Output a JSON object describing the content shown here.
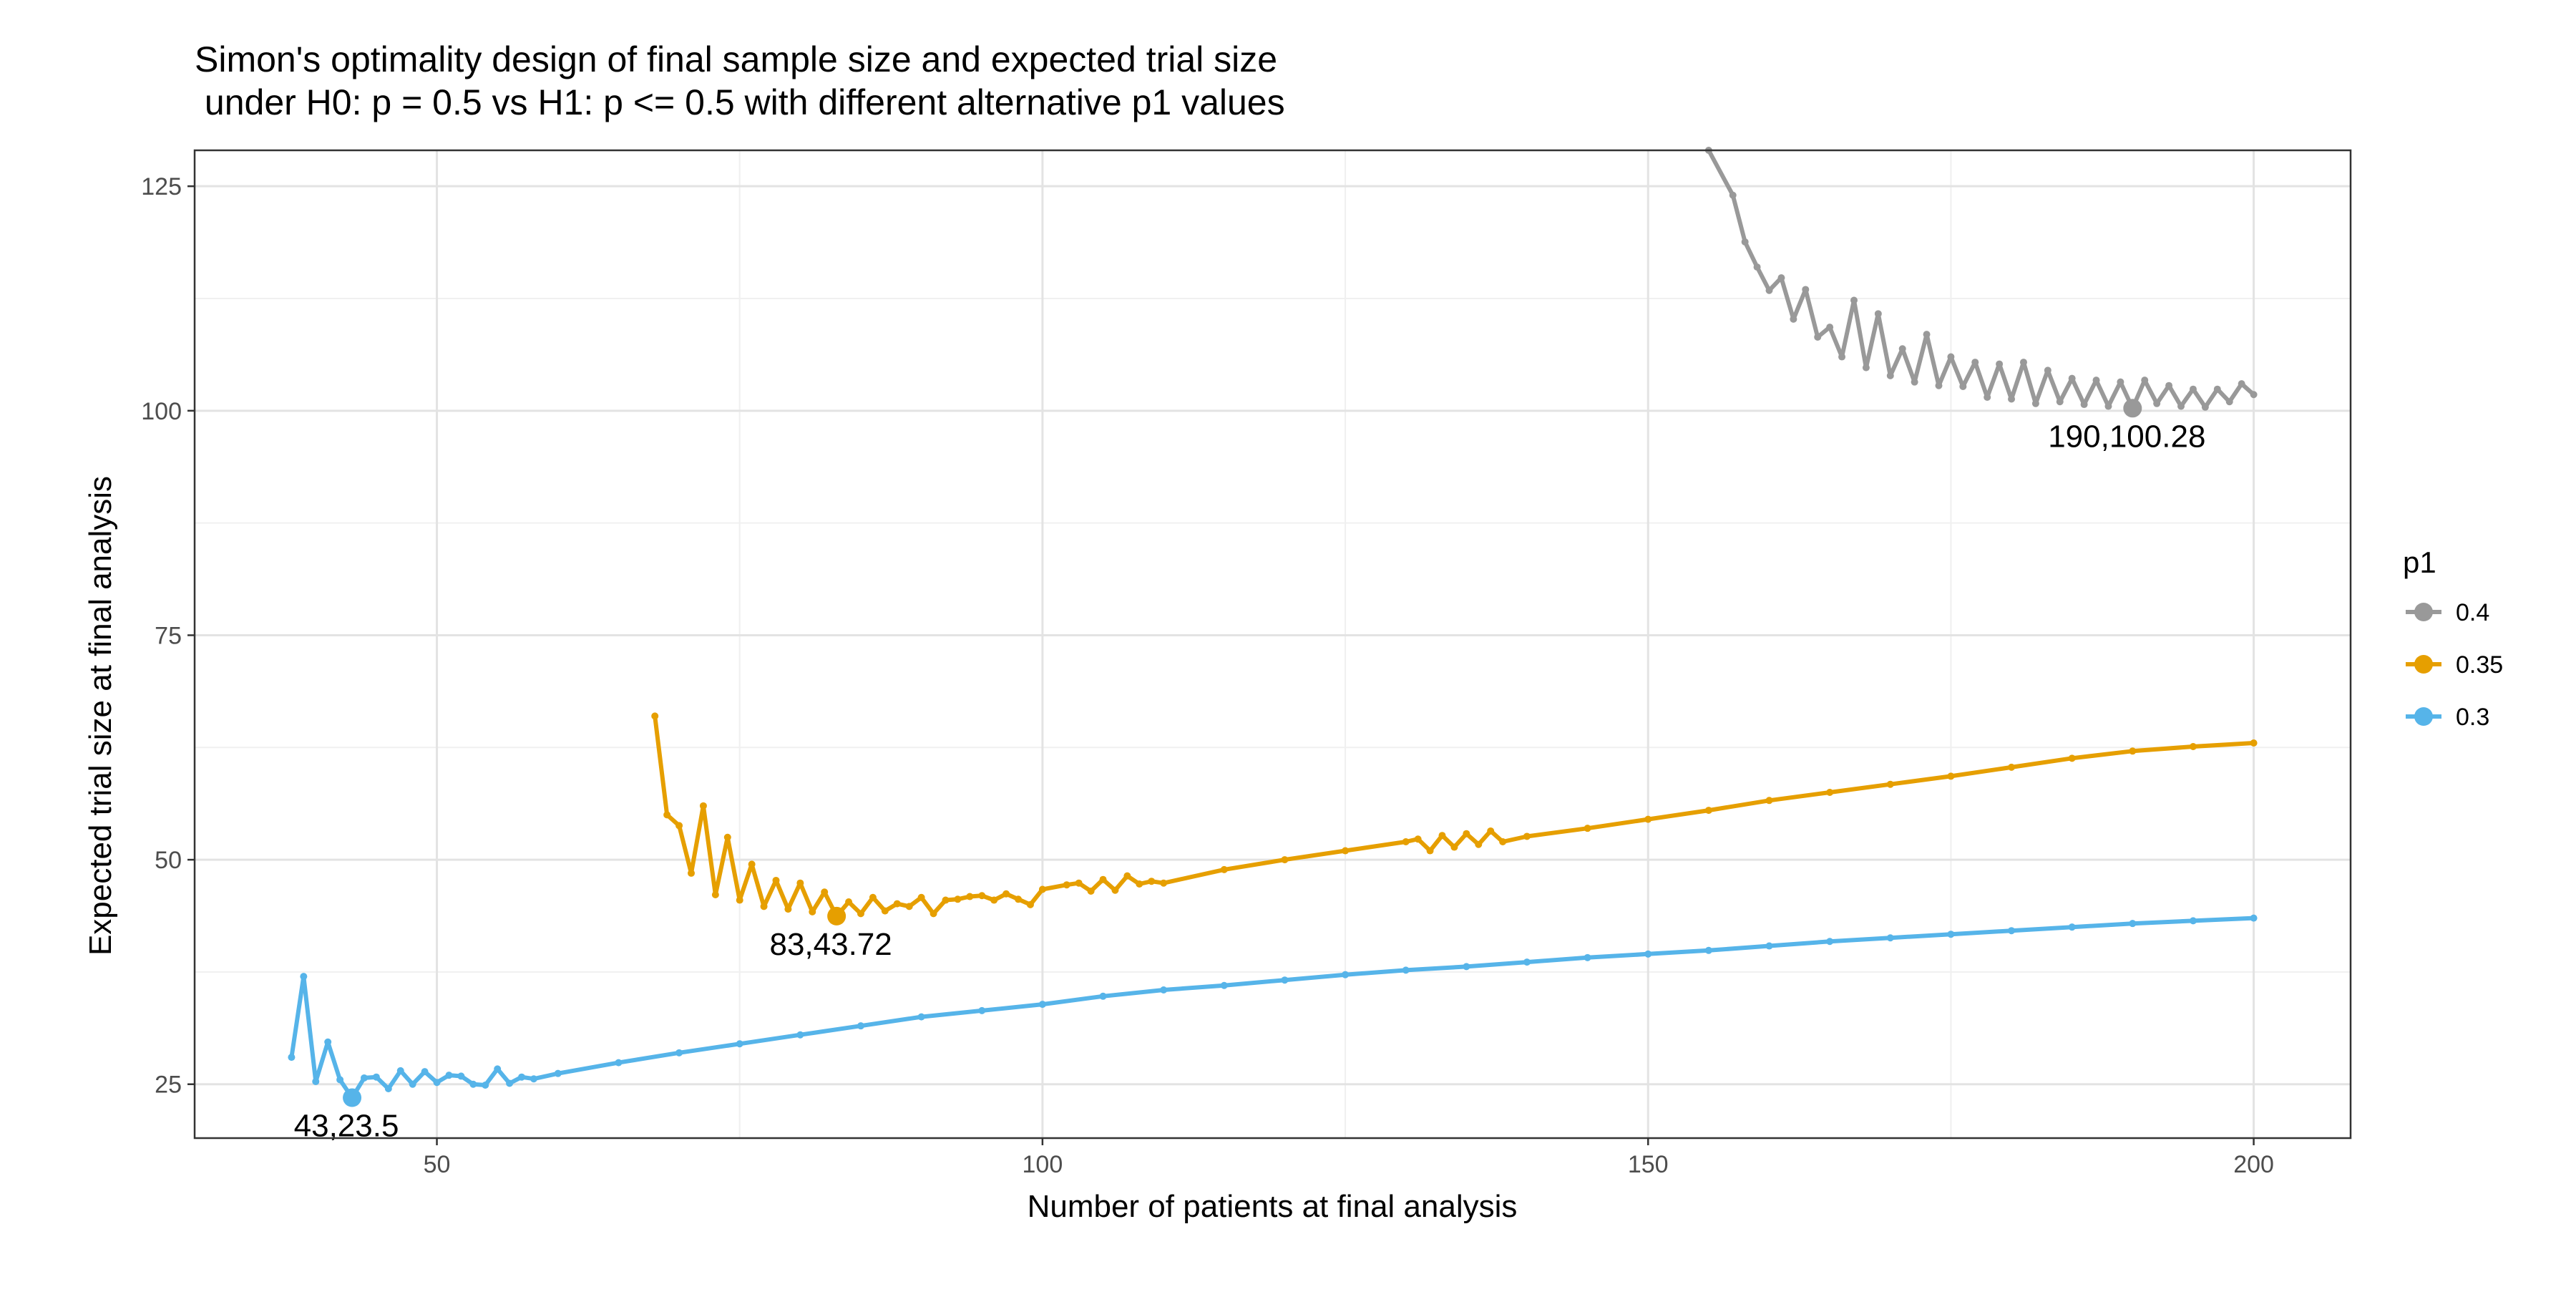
{
  "chart_data": {
    "type": "line",
    "title_line1": "Simon's optimality design of final sample size and expected trial size",
    "title_line2": " under H0: p = 0.5 vs H1: p <= 0.5 with different alternative p1 values",
    "xlabel": "Number of patients at final analysis",
    "ylabel": "Expected trial size at final analysis",
    "xlim": [
      30,
      208
    ],
    "ylim": [
      19,
      129
    ],
    "x_ticks": [
      50,
      100,
      150,
      200
    ],
    "y_ticks": [
      25,
      50,
      75,
      100,
      125
    ],
    "grid": true,
    "legend": {
      "title": "p1",
      "position": "right",
      "entries": [
        "0.4",
        "0.35",
        "0.3"
      ]
    },
    "series": [
      {
        "name": "0.4",
        "color": "#999999",
        "points": [
          [
            155,
            129.0
          ],
          [
            157,
            124.0
          ],
          [
            158,
            118.8
          ],
          [
            159,
            116.0
          ],
          [
            160,
            113.4
          ],
          [
            161,
            114.8
          ],
          [
            162,
            110.2
          ],
          [
            163,
            113.5
          ],
          [
            164,
            108.2
          ],
          [
            165,
            109.3
          ],
          [
            166,
            106.0
          ],
          [
            167,
            112.3
          ],
          [
            168,
            104.8
          ],
          [
            169,
            110.8
          ],
          [
            170,
            103.9
          ],
          [
            171,
            106.9
          ],
          [
            172,
            103.2
          ],
          [
            173,
            108.5
          ],
          [
            174,
            102.8
          ],
          [
            175,
            106.0
          ],
          [
            176,
            102.7
          ],
          [
            177,
            105.4
          ],
          [
            178,
            101.5
          ],
          [
            179,
            105.2
          ],
          [
            180,
            101.3
          ],
          [
            181,
            105.4
          ],
          [
            182,
            100.8
          ],
          [
            183,
            104.5
          ],
          [
            184,
            101.0
          ],
          [
            185,
            103.6
          ],
          [
            186,
            100.7
          ],
          [
            187,
            103.4
          ],
          [
            188,
            100.5
          ],
          [
            189,
            103.2
          ],
          [
            190,
            100.28
          ],
          [
            191,
            103.4
          ],
          [
            192,
            100.8
          ],
          [
            193,
            102.8
          ],
          [
            194,
            100.5
          ],
          [
            195,
            102.4
          ],
          [
            196,
            100.4
          ],
          [
            197,
            102.4
          ],
          [
            198,
            101.0
          ],
          [
            199,
            103.0
          ],
          [
            200,
            101.8
          ]
        ],
        "optimum": {
          "x": 190,
          "y": 100.28,
          "label": "190,100.28"
        }
      },
      {
        "name": "0.35",
        "color": "#E69F00",
        "points": [
          [
            68,
            66.0
          ],
          [
            69,
            55.0
          ],
          [
            70,
            53.8
          ],
          [
            71,
            48.5
          ],
          [
            72,
            56.0
          ],
          [
            73,
            46.1
          ],
          [
            74,
            52.5
          ],
          [
            75,
            45.5
          ],
          [
            76,
            49.5
          ],
          [
            77,
            44.8
          ],
          [
            78,
            47.7
          ],
          [
            79,
            44.5
          ],
          [
            80,
            47.4
          ],
          [
            81,
            44.2
          ],
          [
            82,
            46.4
          ],
          [
            83,
            43.72
          ],
          [
            84,
            45.3
          ],
          [
            85,
            44.0
          ],
          [
            86,
            45.8
          ],
          [
            87,
            44.3
          ],
          [
            88,
            45.1
          ],
          [
            89,
            44.8
          ],
          [
            90,
            45.8
          ],
          [
            91,
            44.0
          ],
          [
            92,
            45.5
          ],
          [
            93,
            45.6
          ],
          [
            94,
            45.9
          ],
          [
            95,
            46.0
          ],
          [
            96,
            45.5
          ],
          [
            97,
            46.2
          ],
          [
            98,
            45.6
          ],
          [
            99,
            45.0
          ],
          [
            100,
            46.7
          ],
          [
            102,
            47.2
          ],
          [
            103,
            47.4
          ],
          [
            104,
            46.5
          ],
          [
            105,
            47.8
          ],
          [
            106,
            46.6
          ],
          [
            107,
            48.2
          ],
          [
            108,
            47.3
          ],
          [
            109,
            47.6
          ],
          [
            110,
            47.4
          ],
          [
            115,
            48.9
          ],
          [
            120,
            50.0
          ],
          [
            125,
            51.0
          ],
          [
            130,
            52.0
          ],
          [
            131,
            52.3
          ],
          [
            132,
            51.0
          ],
          [
            133,
            52.7
          ],
          [
            134,
            51.4
          ],
          [
            135,
            52.9
          ],
          [
            136,
            51.7
          ],
          [
            137,
            53.2
          ],
          [
            138,
            52.0
          ],
          [
            140,
            52.6
          ],
          [
            145,
            53.5
          ],
          [
            150,
            54.5
          ],
          [
            155,
            55.5
          ],
          [
            160,
            56.6
          ],
          [
            165,
            57.5
          ],
          [
            170,
            58.4
          ],
          [
            175,
            59.3
          ],
          [
            180,
            60.3
          ],
          [
            185,
            61.3
          ],
          [
            190,
            62.1
          ],
          [
            195,
            62.6
          ],
          [
            200,
            63.0
          ]
        ],
        "optimum": {
          "x": 83,
          "y": 43.72,
          "label": "83,43.72"
        }
      },
      {
        "name": "0.3",
        "color": "#56B4E9",
        "points": [
          [
            38,
            28.0
          ],
          [
            39,
            37.0
          ],
          [
            40,
            25.3
          ],
          [
            41,
            29.7
          ],
          [
            42,
            25.5
          ],
          [
            43,
            23.5
          ],
          [
            44,
            25.7
          ],
          [
            45,
            25.8
          ],
          [
            46,
            24.5
          ],
          [
            47,
            26.5
          ],
          [
            48,
            25.0
          ],
          [
            49,
            26.4
          ],
          [
            50,
            25.2
          ],
          [
            51,
            26.0
          ],
          [
            52,
            25.9
          ],
          [
            53,
            25.0
          ],
          [
            54,
            24.9
          ],
          [
            55,
            26.7
          ],
          [
            56,
            25.1
          ],
          [
            57,
            25.8
          ],
          [
            58,
            25.6
          ],
          [
            60,
            26.2
          ],
          [
            65,
            27.4
          ],
          [
            70,
            28.5
          ],
          [
            75,
            29.5
          ],
          [
            80,
            30.5
          ],
          [
            85,
            31.5
          ],
          [
            90,
            32.5
          ],
          [
            95,
            33.2
          ],
          [
            100,
            33.9
          ],
          [
            105,
            34.8
          ],
          [
            110,
            35.5
          ],
          [
            115,
            36.0
          ],
          [
            120,
            36.6
          ],
          [
            125,
            37.2
          ],
          [
            130,
            37.7
          ],
          [
            135,
            38.1
          ],
          [
            140,
            38.6
          ],
          [
            145,
            39.1
          ],
          [
            150,
            39.5
          ],
          [
            155,
            39.9
          ],
          [
            160,
            40.4
          ],
          [
            165,
            40.9
          ],
          [
            170,
            41.3
          ],
          [
            175,
            41.7
          ],
          [
            180,
            42.1
          ],
          [
            185,
            42.5
          ],
          [
            190,
            42.9
          ],
          [
            195,
            43.2
          ],
          [
            200,
            43.5
          ]
        ],
        "optimum": {
          "x": 43,
          "y": 23.5,
          "label": "43,23.5"
        }
      }
    ]
  }
}
